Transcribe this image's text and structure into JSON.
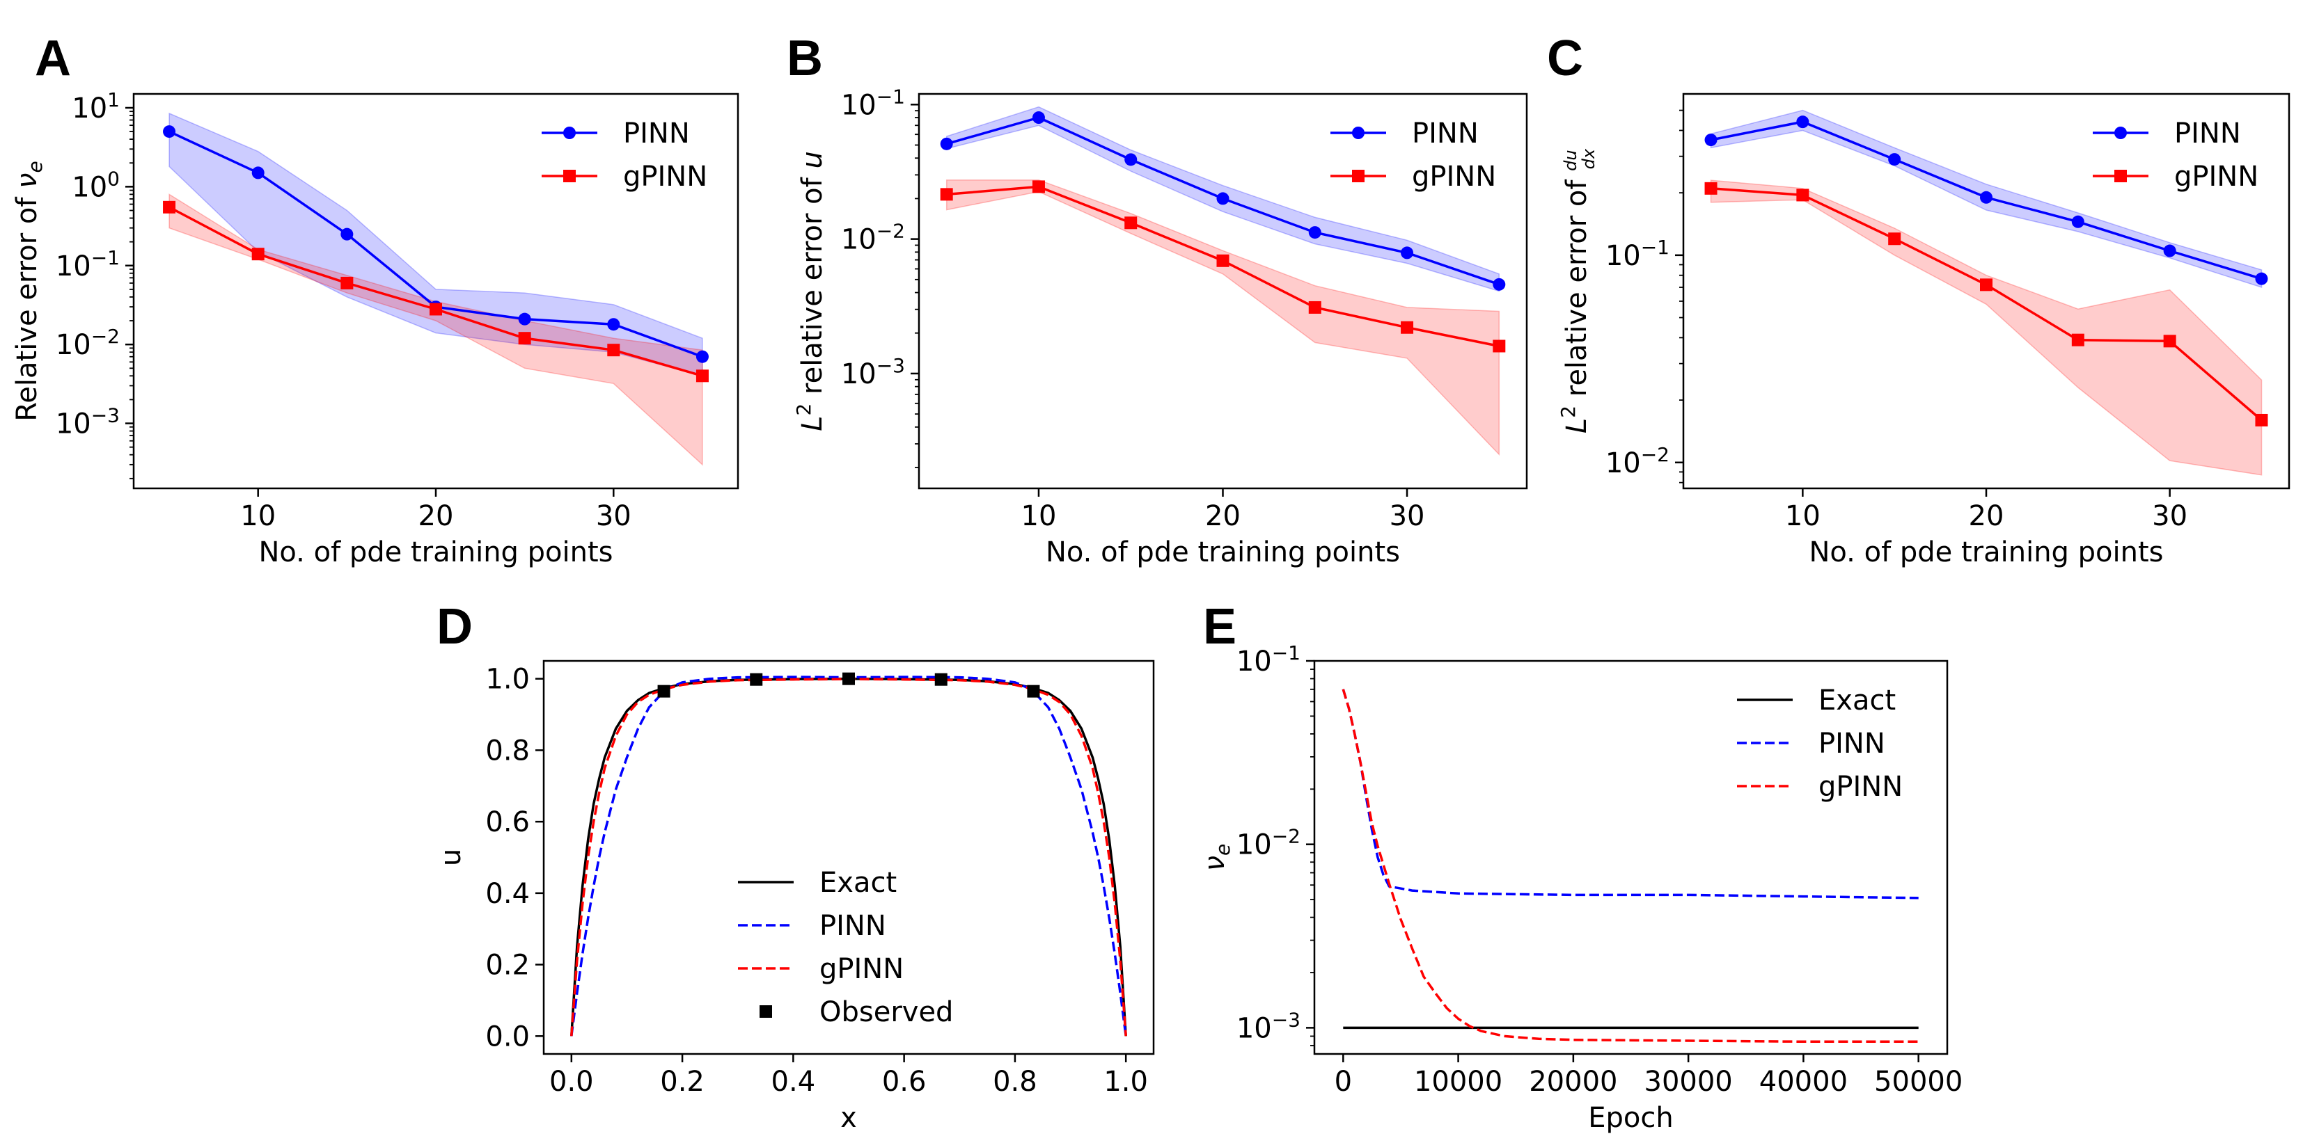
{
  "figure": {
    "colors": {
      "pinn": "#0000ff",
      "gpinn": "#ff0000",
      "exact": "#000000",
      "observed": "#000000"
    }
  },
  "chart_data": [
    {
      "id": "A",
      "panel_label": "A",
      "type": "line",
      "title": "",
      "xlabel": "No. of pde training points",
      "ylabel_parts": [
        "Relative error of ",
        "ν",
        "e"
      ],
      "yscale": "log",
      "xlim": [
        3,
        37
      ],
      "ylim": [
        0.00015,
        15
      ],
      "xticks": [
        10,
        20,
        30
      ],
      "xtick_labels": [
        "10",
        "20",
        "30"
      ],
      "yticks": [
        0.001,
        0.01,
        0.1,
        1,
        10
      ],
      "ytick_labels": [
        [
          "10",
          "−3"
        ],
        [
          "10",
          "−2"
        ],
        [
          "10",
          "−1"
        ],
        [
          "10",
          "0"
        ],
        [
          "10",
          "1"
        ]
      ],
      "legend": {
        "position": "top-right",
        "entries": [
          "PINN",
          "gPINN"
        ]
      },
      "x": [
        5,
        10,
        15,
        20,
        25,
        30,
        35
      ],
      "series": [
        {
          "name": "PINN",
          "values": [
            5.0,
            1.5,
            0.25,
            0.03,
            0.021,
            0.018,
            0.007
          ],
          "band_low": [
            1.8,
            0.15,
            0.04,
            0.014,
            0.01,
            0.008,
            0.004
          ],
          "band_high": [
            8.5,
            2.8,
            0.5,
            0.05,
            0.045,
            0.032,
            0.012
          ]
        },
        {
          "name": "gPINN",
          "values": [
            0.55,
            0.14,
            0.06,
            0.028,
            0.012,
            0.0085,
            0.004
          ],
          "band_low": [
            0.3,
            0.12,
            0.045,
            0.02,
            0.005,
            0.0032,
            0.0003
          ],
          "band_high": [
            0.8,
            0.16,
            0.075,
            0.035,
            0.02,
            0.012,
            0.0085
          ]
        }
      ]
    },
    {
      "id": "B",
      "panel_label": "B",
      "type": "line",
      "title": "",
      "xlabel": "No. of pde training points",
      "ylabel_parts": [
        "L",
        "2",
        " relative error of ",
        "u"
      ],
      "yscale": "log",
      "xlim": [
        3.5,
        36.5
      ],
      "ylim": [
        0.00014,
        0.12
      ],
      "xticks": [
        10,
        20,
        30
      ],
      "xtick_labels": [
        "10",
        "20",
        "30"
      ],
      "yticks": [
        0.001,
        0.01,
        0.1
      ],
      "ytick_labels": [
        [
          "10",
          "−3"
        ],
        [
          "10",
          "−2"
        ],
        [
          "10",
          "−1"
        ]
      ],
      "legend": {
        "position": "top-right",
        "entries": [
          "PINN",
          "gPINN"
        ]
      },
      "x": [
        5,
        10,
        15,
        20,
        25,
        30,
        35
      ],
      "series": [
        {
          "name": "PINN",
          "values": [
            0.051,
            0.08,
            0.039,
            0.02,
            0.0112,
            0.0079,
            0.0046
          ],
          "band_low": [
            0.047,
            0.07,
            0.032,
            0.016,
            0.0092,
            0.0066,
            0.0041
          ],
          "band_high": [
            0.058,
            0.096,
            0.046,
            0.025,
            0.0145,
            0.0098,
            0.0055
          ]
        },
        {
          "name": "gPINN",
          "values": [
            0.0215,
            0.0245,
            0.0132,
            0.0069,
            0.0031,
            0.0022,
            0.0016
          ],
          "band_low": [
            0.0165,
            0.0225,
            0.011,
            0.0055,
            0.0017,
            0.0013,
            0.00025
          ],
          "band_high": [
            0.0275,
            0.0275,
            0.0155,
            0.0082,
            0.0045,
            0.0031,
            0.0029
          ]
        }
      ]
    },
    {
      "id": "C",
      "panel_label": "C",
      "type": "line",
      "title": "",
      "xlabel": "No. of pde training points",
      "ylabel_parts": [
        "L",
        "2",
        " relative error of ",
        "du",
        "dx"
      ],
      "yscale": "log",
      "xlim": [
        3.5,
        36.5
      ],
      "ylim": [
        0.0075,
        0.6
      ],
      "xticks": [
        10,
        20,
        30
      ],
      "xtick_labels": [
        "10",
        "20",
        "30"
      ],
      "yticks": [
        0.01,
        0.1
      ],
      "ytick_labels": [
        [
          "10",
          "−2"
        ],
        [
          "10",
          "−1"
        ]
      ],
      "legend": {
        "position": "top-right",
        "entries": [
          "PINN",
          "gPINN"
        ]
      },
      "x": [
        5,
        10,
        15,
        20,
        25,
        30,
        35
      ],
      "series": [
        {
          "name": "PINN",
          "values": [
            0.36,
            0.44,
            0.29,
            0.19,
            0.145,
            0.105,
            0.077
          ],
          "band_low": [
            0.33,
            0.4,
            0.27,
            0.165,
            0.13,
            0.097,
            0.07
          ],
          "band_high": [
            0.385,
            0.5,
            0.33,
            0.22,
            0.16,
            0.115,
            0.085
          ]
        },
        {
          "name": "gPINN",
          "values": [
            0.21,
            0.195,
            0.12,
            0.072,
            0.039,
            0.0385,
            0.016
          ],
          "band_low": [
            0.18,
            0.185,
            0.1,
            0.058,
            0.023,
            0.0102,
            0.0087
          ],
          "band_high": [
            0.23,
            0.21,
            0.135,
            0.08,
            0.055,
            0.068,
            0.025
          ]
        }
      ]
    },
    {
      "id": "D",
      "panel_label": "D",
      "type": "line",
      "title": "",
      "xlabel": "x",
      "ylabel": "u",
      "yscale": "linear",
      "xlim": [
        -0.05,
        1.05
      ],
      "ylim": [
        -0.05,
        1.05
      ],
      "xticks": [
        0.0,
        0.2,
        0.4,
        0.6,
        0.8,
        1.0
      ],
      "xtick_labels": [
        "0.0",
        "0.2",
        "0.4",
        "0.6",
        "0.8",
        "1.0"
      ],
      "yticks": [
        0.0,
        0.2,
        0.4,
        0.6,
        0.8,
        1.0
      ],
      "ytick_labels": [
        "0.0",
        "0.2",
        "0.4",
        "0.6",
        "0.8",
        "1.0"
      ],
      "legend": {
        "position": "lower-center",
        "entries": [
          "Exact",
          "PINN",
          "gPINN",
          "Observed"
        ]
      },
      "x": [
        0.0,
        0.01,
        0.02,
        0.03,
        0.04,
        0.05,
        0.06,
        0.08,
        0.1,
        0.12,
        0.14,
        0.17,
        0.2,
        0.25,
        0.3,
        0.4,
        0.5,
        0.6,
        0.7,
        0.75,
        0.8,
        0.83,
        0.86,
        0.88,
        0.9,
        0.92,
        0.94,
        0.95,
        0.96,
        0.97,
        0.98,
        0.99,
        1.0
      ],
      "series": [
        {
          "name": "Exact",
          "style": "solid",
          "values": [
            0.0,
            0.25,
            0.42,
            0.55,
            0.65,
            0.72,
            0.78,
            0.86,
            0.91,
            0.94,
            0.96,
            0.975,
            0.985,
            0.993,
            0.997,
            0.999,
            1.0,
            0.999,
            0.997,
            0.993,
            0.985,
            0.975,
            0.96,
            0.94,
            0.91,
            0.86,
            0.78,
            0.72,
            0.65,
            0.55,
            0.42,
            0.25,
            0.0
          ]
        },
        {
          "name": "PINN",
          "style": "dashed",
          "values": [
            0.0,
            0.12,
            0.23,
            0.33,
            0.42,
            0.5,
            0.57,
            0.69,
            0.78,
            0.86,
            0.92,
            0.97,
            0.99,
            1.0,
            1.004,
            1.005,
            1.004,
            1.005,
            1.004,
            1.0,
            0.99,
            0.97,
            0.92,
            0.86,
            0.78,
            0.69,
            0.57,
            0.5,
            0.42,
            0.33,
            0.23,
            0.12,
            0.0
          ]
        },
        {
          "name": "gPINN",
          "style": "dashed",
          "values": [
            0.0,
            0.21,
            0.37,
            0.5,
            0.6,
            0.68,
            0.75,
            0.84,
            0.9,
            0.935,
            0.955,
            0.972,
            0.983,
            0.992,
            0.996,
            0.998,
            0.999,
            0.998,
            0.996,
            0.992,
            0.983,
            0.972,
            0.955,
            0.935,
            0.9,
            0.84,
            0.75,
            0.68,
            0.6,
            0.5,
            0.37,
            0.21,
            0.0
          ]
        }
      ],
      "observed": {
        "name": "Observed",
        "x": [
          0.1667,
          0.3333,
          0.5,
          0.6667,
          0.8333
        ],
        "y": [
          0.965,
          0.998,
          1.0,
          0.998,
          0.965
        ]
      }
    },
    {
      "id": "E",
      "panel_label": "E",
      "type": "line",
      "title": "",
      "xlabel": "Epoch",
      "ylabel_parts": [
        "ν",
        "e"
      ],
      "yscale": "log",
      "xlim": [
        -2500,
        52500
      ],
      "ylim": [
        0.00072,
        0.1
      ],
      "xticks": [
        0,
        10000,
        20000,
        30000,
        40000,
        50000
      ],
      "xtick_labels": [
        "0",
        "10000",
        "20000",
        "30000",
        "40000",
        "50000"
      ],
      "yticks": [
        0.001,
        0.01,
        0.1
      ],
      "ytick_labels": [
        [
          "10",
          "−3"
        ],
        [
          "10",
          "−2"
        ],
        [
          "10",
          "−1"
        ]
      ],
      "legend": {
        "position": "top-right",
        "entries": [
          "Exact",
          "PINN",
          "gPINN"
        ]
      },
      "series": [
        {
          "name": "Exact",
          "style": "solid",
          "x": [
            0,
            50000
          ],
          "values": [
            0.001,
            0.001
          ]
        },
        {
          "name": "PINN",
          "style": "dashed",
          "x": [
            0,
            500,
            1000,
            1500,
            2000,
            2500,
            3000,
            3500,
            4000,
            6000,
            10000,
            20000,
            30000,
            40000,
            50000
          ],
          "values": [
            0.07,
            0.055,
            0.04,
            0.028,
            0.018,
            0.012,
            0.0085,
            0.0068,
            0.0059,
            0.0056,
            0.0054,
            0.0053,
            0.0053,
            0.0052,
            0.0051
          ]
        },
        {
          "name": "gPINN",
          "style": "dashed",
          "x": [
            0,
            500,
            1000,
            1500,
            2000,
            2500,
            3000,
            4000,
            5000,
            6000,
            7000,
            8000,
            9000,
            10000,
            11000,
            12000,
            14000,
            17000,
            20000,
            30000,
            40000,
            50000
          ],
          "values": [
            0.07,
            0.055,
            0.04,
            0.028,
            0.019,
            0.013,
            0.0098,
            0.0061,
            0.0039,
            0.0027,
            0.0019,
            0.00155,
            0.00128,
            0.00112,
            0.00102,
            0.00096,
            0.0009,
            0.00087,
            0.00086,
            0.00085,
            0.00084,
            0.00084
          ]
        }
      ]
    }
  ]
}
